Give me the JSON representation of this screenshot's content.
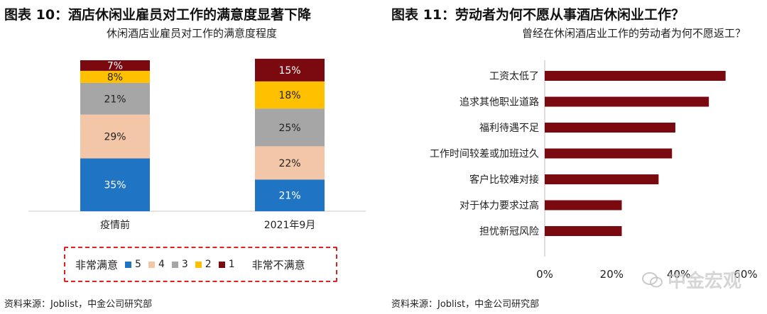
{
  "left": {
    "figure_title": "图表 10：酒店休闲业雇员对工作的满意度显著下降",
    "source": "资料来源：Joblist，中金公司研究部",
    "legend_left": "非常满意",
    "legend_right": "非常不满意"
  },
  "right": {
    "figure_title": "图表 11：劳动者为何不愿从事酒店休闲业工作？",
    "source": "资料来源：Joblist，中金公司研究部"
  },
  "watermark": "中金宏观",
  "chart_data": [
    {
      "type": "bar",
      "stacked": true,
      "title": "休闲酒店业雇员对工作的满意度程度",
      "categories": [
        "疫情前",
        "2021年9月"
      ],
      "series": [
        {
          "name": "5",
          "color": "#1f74c4",
          "values": [
            35,
            21
          ]
        },
        {
          "name": "4",
          "color": "#f4c6a8",
          "values": [
            29,
            22
          ]
        },
        {
          "name": "3",
          "color": "#a6a6a6",
          "values": [
            21,
            25
          ]
        },
        {
          "name": "2",
          "color": "#ffc000",
          "values": [
            8,
            18
          ]
        },
        {
          "name": "1",
          "color": "#7a0a10",
          "values": [
            7,
            15
          ]
        }
      ],
      "value_suffix": "%",
      "ylim": [
        0,
        100
      ],
      "legend": "bottom"
    },
    {
      "type": "bar",
      "orientation": "horizontal",
      "title": "曾经在休闲酒店业工作的劳动者为何不愿返工？",
      "categories": [
        "工资太低了",
        "追求其他职业道路",
        "福利待遇不足",
        "工作时间较差或加班过久",
        "客户比较难对接",
        "对于体力要求过高",
        "担忧新冠风险"
      ],
      "values": [
        54,
        49,
        39,
        38,
        34,
        23,
        23
      ],
      "color": "#7a0a10",
      "xlim": [
        0,
        60
      ],
      "xticks": [
        "0%",
        "20%",
        "40%",
        "60%"
      ]
    }
  ]
}
